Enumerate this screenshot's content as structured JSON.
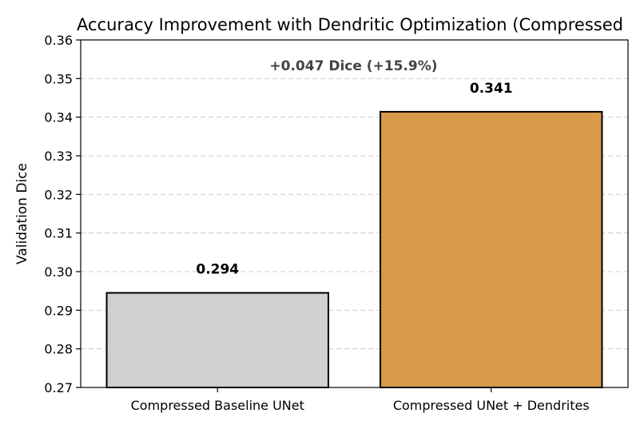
{
  "chart_data": {
    "type": "bar",
    "title": "Accuracy Improvement with Dendritic Optimization (Compressed",
    "xlabel": "",
    "ylabel": "Validation Dice",
    "ylim": [
      0.27,
      0.36
    ],
    "yticks": [
      "0.27",
      "0.28",
      "0.29",
      "0.30",
      "0.31",
      "0.32",
      "0.33",
      "0.34",
      "0.35",
      "0.36"
    ],
    "categories": [
      "Compressed Baseline UNet",
      "Compressed UNet + Dendrites"
    ],
    "values": [
      0.2945,
      0.3414
    ],
    "value_labels": [
      "0.294",
      "0.341"
    ],
    "bar_colors": [
      "#d0d0d0",
      "#d79b4b"
    ],
    "annotation": "+0.047 Dice  (+15.9%)",
    "grid": true,
    "grid_axis": "y",
    "legend": false
  }
}
